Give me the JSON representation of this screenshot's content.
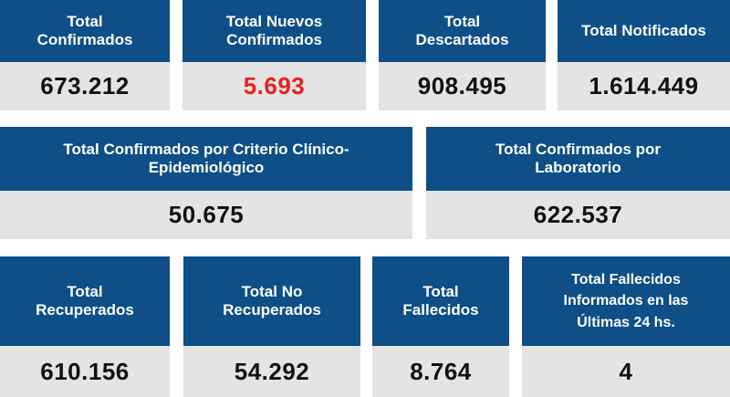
{
  "row1": [
    {
      "title": [
        "Total",
        "Confirmados"
      ],
      "value": "673.212"
    },
    {
      "title": [
        "Total Nuevos",
        "Confirmados"
      ],
      "value": "5.693",
      "value_color": "#e8201c"
    },
    {
      "title": [
        "Total",
        "Descartados"
      ],
      "value": "908.495"
    },
    {
      "title": [
        "Total Notificados"
      ],
      "value": "1.614.449"
    }
  ],
  "row2": [
    {
      "title": [
        "Total Confirmados por Criterio Clínico-",
        "Epidemiológico"
      ],
      "value": "50.675"
    },
    {
      "title": [
        "Total Confirmados por",
        "Laboratorio"
      ],
      "value": "622.537"
    }
  ],
  "row3": [
    {
      "title": [
        "Total",
        "Recuperados"
      ],
      "value": "610.156"
    },
    {
      "title": [
        "Total No",
        "Recuperados"
      ],
      "value": "54.292"
    },
    {
      "title": [
        "Total",
        "Fallecidos"
      ],
      "value": "8.764"
    },
    {
      "title": [
        "Total Fallecidos",
        "Informados en las",
        "Últimas 24 hs."
      ],
      "value": "4"
    }
  ],
  "colors": {
    "header_bg": "#0d4f86",
    "value_bg": "#e4e4e4",
    "highlight": "#e8201c"
  }
}
